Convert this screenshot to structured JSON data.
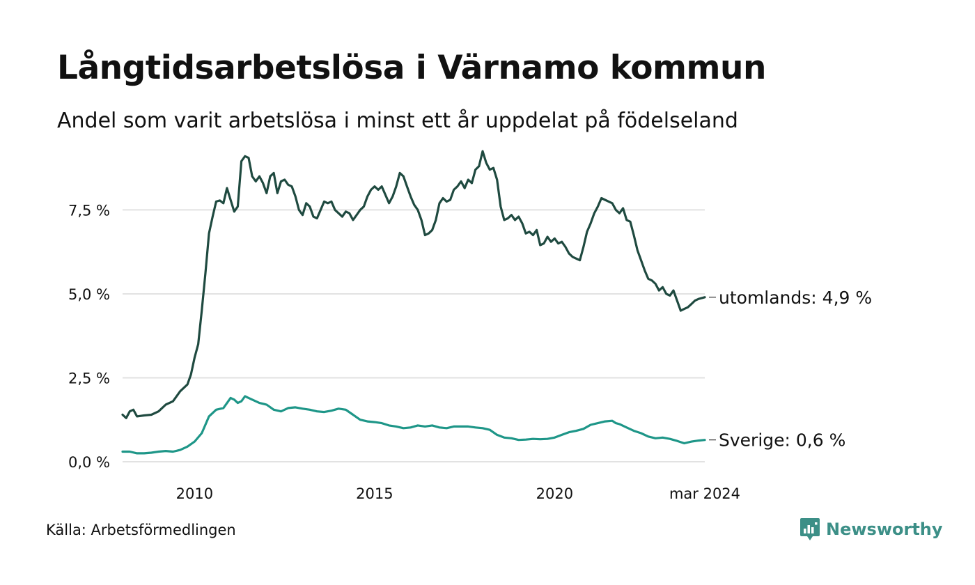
{
  "title": "Långtidsarbetslösa i Värnamo kommun",
  "subtitle": "Andel som varit arbetslösa i minst ett år uppdelat på födelseland",
  "source": "Källa: Arbetsförmedlingen",
  "brand": {
    "name": "Newsworthy",
    "icon": "newsworthy-logo-icon",
    "color": "#3c8f87"
  },
  "chart_data": {
    "type": "line",
    "ylim": [
      0,
      9.5
    ],
    "yticks": [
      0,
      2.5,
      5,
      7.5
    ],
    "ytick_labels": [
      "0,0 %",
      "2,5 %",
      "5,0 %",
      "7,5 %"
    ],
    "xlim": [
      2008.0,
      2024.17
    ],
    "xticks": [
      2010,
      2015,
      2020,
      2024.17
    ],
    "xtick_labels": [
      "2010",
      "2015",
      "2020",
      "mar 2024"
    ],
    "grid": true,
    "series": [
      {
        "name": "utomlands",
        "end_label": "utomlands: 4,9 %",
        "color": "#1f4a40",
        "points": [
          [
            2008.0,
            1.4
          ],
          [
            2008.1,
            1.3
          ],
          [
            2008.2,
            1.5
          ],
          [
            2008.3,
            1.55
          ],
          [
            2008.4,
            1.35
          ],
          [
            2008.6,
            1.38
          ],
          [
            2008.8,
            1.4
          ],
          [
            2009.0,
            1.5
          ],
          [
            2009.2,
            1.7
          ],
          [
            2009.4,
            1.8
          ],
          [
            2009.6,
            2.1
          ],
          [
            2009.8,
            2.3
          ],
          [
            2009.9,
            2.6
          ],
          [
            2010.0,
            3.1
          ],
          [
            2010.1,
            3.5
          ],
          [
            2010.2,
            4.5
          ],
          [
            2010.3,
            5.6
          ],
          [
            2010.4,
            6.8
          ],
          [
            2010.5,
            7.3
          ],
          [
            2010.6,
            7.75
          ],
          [
            2010.7,
            7.78
          ],
          [
            2010.8,
            7.7
          ],
          [
            2010.9,
            8.15
          ],
          [
            2011.0,
            7.8
          ],
          [
            2011.1,
            7.45
          ],
          [
            2011.2,
            7.6
          ],
          [
            2011.3,
            8.95
          ],
          [
            2011.4,
            9.1
          ],
          [
            2011.5,
            9.05
          ],
          [
            2011.6,
            8.5
          ],
          [
            2011.7,
            8.35
          ],
          [
            2011.8,
            8.5
          ],
          [
            2011.9,
            8.3
          ],
          [
            2012.0,
            8.0
          ],
          [
            2012.1,
            8.5
          ],
          [
            2012.2,
            8.6
          ],
          [
            2012.3,
            8.0
          ],
          [
            2012.4,
            8.35
          ],
          [
            2012.5,
            8.4
          ],
          [
            2012.6,
            8.25
          ],
          [
            2012.7,
            8.2
          ],
          [
            2012.8,
            7.9
          ],
          [
            2012.9,
            7.5
          ],
          [
            2013.0,
            7.35
          ],
          [
            2013.1,
            7.7
          ],
          [
            2013.2,
            7.6
          ],
          [
            2013.3,
            7.3
          ],
          [
            2013.4,
            7.25
          ],
          [
            2013.5,
            7.5
          ],
          [
            2013.6,
            7.75
          ],
          [
            2013.7,
            7.7
          ],
          [
            2013.8,
            7.75
          ],
          [
            2013.9,
            7.5
          ],
          [
            2014.0,
            7.4
          ],
          [
            2014.1,
            7.3
          ],
          [
            2014.2,
            7.45
          ],
          [
            2014.3,
            7.4
          ],
          [
            2014.4,
            7.2
          ],
          [
            2014.5,
            7.35
          ],
          [
            2014.6,
            7.5
          ],
          [
            2014.7,
            7.6
          ],
          [
            2014.8,
            7.9
          ],
          [
            2014.9,
            8.1
          ],
          [
            2015.0,
            8.2
          ],
          [
            2015.1,
            8.1
          ],
          [
            2015.2,
            8.2
          ],
          [
            2015.3,
            7.95
          ],
          [
            2015.4,
            7.7
          ],
          [
            2015.5,
            7.9
          ],
          [
            2015.6,
            8.2
          ],
          [
            2015.7,
            8.6
          ],
          [
            2015.8,
            8.5
          ],
          [
            2015.9,
            8.2
          ],
          [
            2016.0,
            7.9
          ],
          [
            2016.1,
            7.65
          ],
          [
            2016.2,
            7.5
          ],
          [
            2016.3,
            7.2
          ],
          [
            2016.4,
            6.75
          ],
          [
            2016.5,
            6.8
          ],
          [
            2016.6,
            6.9
          ],
          [
            2016.7,
            7.2
          ],
          [
            2016.8,
            7.7
          ],
          [
            2016.9,
            7.85
          ],
          [
            2017.0,
            7.75
          ],
          [
            2017.1,
            7.8
          ],
          [
            2017.2,
            8.1
          ],
          [
            2017.3,
            8.2
          ],
          [
            2017.4,
            8.35
          ],
          [
            2017.5,
            8.15
          ],
          [
            2017.6,
            8.4
          ],
          [
            2017.7,
            8.3
          ],
          [
            2017.8,
            8.7
          ],
          [
            2017.9,
            8.8
          ],
          [
            2018.0,
            9.25
          ],
          [
            2018.1,
            8.9
          ],
          [
            2018.2,
            8.7
          ],
          [
            2018.3,
            8.75
          ],
          [
            2018.4,
            8.4
          ],
          [
            2018.5,
            7.6
          ],
          [
            2018.6,
            7.2
          ],
          [
            2018.7,
            7.25
          ],
          [
            2018.8,
            7.35
          ],
          [
            2018.9,
            7.2
          ],
          [
            2019.0,
            7.3
          ],
          [
            2019.1,
            7.1
          ],
          [
            2019.2,
            6.8
          ],
          [
            2019.3,
            6.85
          ],
          [
            2019.4,
            6.75
          ],
          [
            2019.5,
            6.9
          ],
          [
            2019.6,
            6.45
          ],
          [
            2019.7,
            6.5
          ],
          [
            2019.8,
            6.7
          ],
          [
            2019.9,
            6.55
          ],
          [
            2020.0,
            6.65
          ],
          [
            2020.1,
            6.5
          ],
          [
            2020.2,
            6.55
          ],
          [
            2020.3,
            6.4
          ],
          [
            2020.4,
            6.2
          ],
          [
            2020.5,
            6.1
          ],
          [
            2020.6,
            6.05
          ],
          [
            2020.7,
            6.0
          ],
          [
            2020.8,
            6.4
          ],
          [
            2020.9,
            6.85
          ],
          [
            2021.0,
            7.1
          ],
          [
            2021.1,
            7.4
          ],
          [
            2021.2,
            7.6
          ],
          [
            2021.3,
            7.85
          ],
          [
            2021.4,
            7.8
          ],
          [
            2021.5,
            7.75
          ],
          [
            2021.6,
            7.7
          ],
          [
            2021.7,
            7.5
          ],
          [
            2021.8,
            7.4
          ],
          [
            2021.9,
            7.55
          ],
          [
            2022.0,
            7.2
          ],
          [
            2022.1,
            7.15
          ],
          [
            2022.2,
            6.75
          ],
          [
            2022.3,
            6.3
          ],
          [
            2022.4,
            6.0
          ],
          [
            2022.5,
            5.7
          ],
          [
            2022.6,
            5.45
          ],
          [
            2022.7,
            5.4
          ],
          [
            2022.8,
            5.3
          ],
          [
            2022.9,
            5.1
          ],
          [
            2023.0,
            5.2
          ],
          [
            2023.1,
            5.0
          ],
          [
            2023.2,
            4.95
          ],
          [
            2023.3,
            5.1
          ],
          [
            2023.4,
            4.8
          ],
          [
            2023.5,
            4.5
          ],
          [
            2023.6,
            4.55
          ],
          [
            2023.7,
            4.6
          ],
          [
            2023.8,
            4.7
          ],
          [
            2023.9,
            4.8
          ],
          [
            2024.0,
            4.85
          ],
          [
            2024.17,
            4.9
          ]
        ]
      },
      {
        "name": "Sverige",
        "end_label": "Sverige: 0,6 %",
        "color": "#1e9688",
        "points": [
          [
            2008.0,
            0.3
          ],
          [
            2008.2,
            0.3
          ],
          [
            2008.4,
            0.25
          ],
          [
            2008.6,
            0.25
          ],
          [
            2008.8,
            0.27
          ],
          [
            2009.0,
            0.3
          ],
          [
            2009.2,
            0.32
          ],
          [
            2009.4,
            0.3
          ],
          [
            2009.6,
            0.35
          ],
          [
            2009.8,
            0.45
          ],
          [
            2010.0,
            0.6
          ],
          [
            2010.2,
            0.85
          ],
          [
            2010.3,
            1.1
          ],
          [
            2010.4,
            1.35
          ],
          [
            2010.6,
            1.55
          ],
          [
            2010.8,
            1.6
          ],
          [
            2011.0,
            1.9
          ],
          [
            2011.1,
            1.85
          ],
          [
            2011.2,
            1.75
          ],
          [
            2011.3,
            1.8
          ],
          [
            2011.4,
            1.95
          ],
          [
            2011.5,
            1.9
          ],
          [
            2011.6,
            1.85
          ],
          [
            2011.8,
            1.75
          ],
          [
            2012.0,
            1.7
          ],
          [
            2012.2,
            1.55
          ],
          [
            2012.4,
            1.5
          ],
          [
            2012.6,
            1.6
          ],
          [
            2012.8,
            1.62
          ],
          [
            2013.0,
            1.58
          ],
          [
            2013.2,
            1.55
          ],
          [
            2013.4,
            1.5
          ],
          [
            2013.6,
            1.48
          ],
          [
            2013.8,
            1.52
          ],
          [
            2014.0,
            1.58
          ],
          [
            2014.2,
            1.55
          ],
          [
            2014.4,
            1.4
          ],
          [
            2014.6,
            1.25
          ],
          [
            2014.8,
            1.2
          ],
          [
            2015.0,
            1.18
          ],
          [
            2015.2,
            1.15
          ],
          [
            2015.4,
            1.08
          ],
          [
            2015.6,
            1.05
          ],
          [
            2015.8,
            1.0
          ],
          [
            2016.0,
            1.02
          ],
          [
            2016.2,
            1.08
          ],
          [
            2016.4,
            1.05
          ],
          [
            2016.6,
            1.08
          ],
          [
            2016.8,
            1.02
          ],
          [
            2017.0,
            1.0
          ],
          [
            2017.2,
            1.05
          ],
          [
            2017.4,
            1.05
          ],
          [
            2017.6,
            1.05
          ],
          [
            2017.8,
            1.02
          ],
          [
            2018.0,
            1.0
          ],
          [
            2018.2,
            0.95
          ],
          [
            2018.4,
            0.8
          ],
          [
            2018.6,
            0.72
          ],
          [
            2018.8,
            0.7
          ],
          [
            2019.0,
            0.65
          ],
          [
            2019.2,
            0.66
          ],
          [
            2019.4,
            0.68
          ],
          [
            2019.6,
            0.67
          ],
          [
            2019.8,
            0.68
          ],
          [
            2020.0,
            0.72
          ],
          [
            2020.2,
            0.8
          ],
          [
            2020.4,
            0.88
          ],
          [
            2020.6,
            0.92
          ],
          [
            2020.8,
            0.98
          ],
          [
            2021.0,
            1.1
          ],
          [
            2021.2,
            1.15
          ],
          [
            2021.4,
            1.2
          ],
          [
            2021.6,
            1.22
          ],
          [
            2021.7,
            1.15
          ],
          [
            2021.8,
            1.12
          ],
          [
            2022.0,
            1.02
          ],
          [
            2022.2,
            0.92
          ],
          [
            2022.4,
            0.85
          ],
          [
            2022.6,
            0.75
          ],
          [
            2022.8,
            0.7
          ],
          [
            2023.0,
            0.72
          ],
          [
            2023.2,
            0.68
          ],
          [
            2023.4,
            0.62
          ],
          [
            2023.6,
            0.55
          ],
          [
            2023.8,
            0.6
          ],
          [
            2024.0,
            0.63
          ],
          [
            2024.17,
            0.65
          ]
        ]
      }
    ]
  }
}
